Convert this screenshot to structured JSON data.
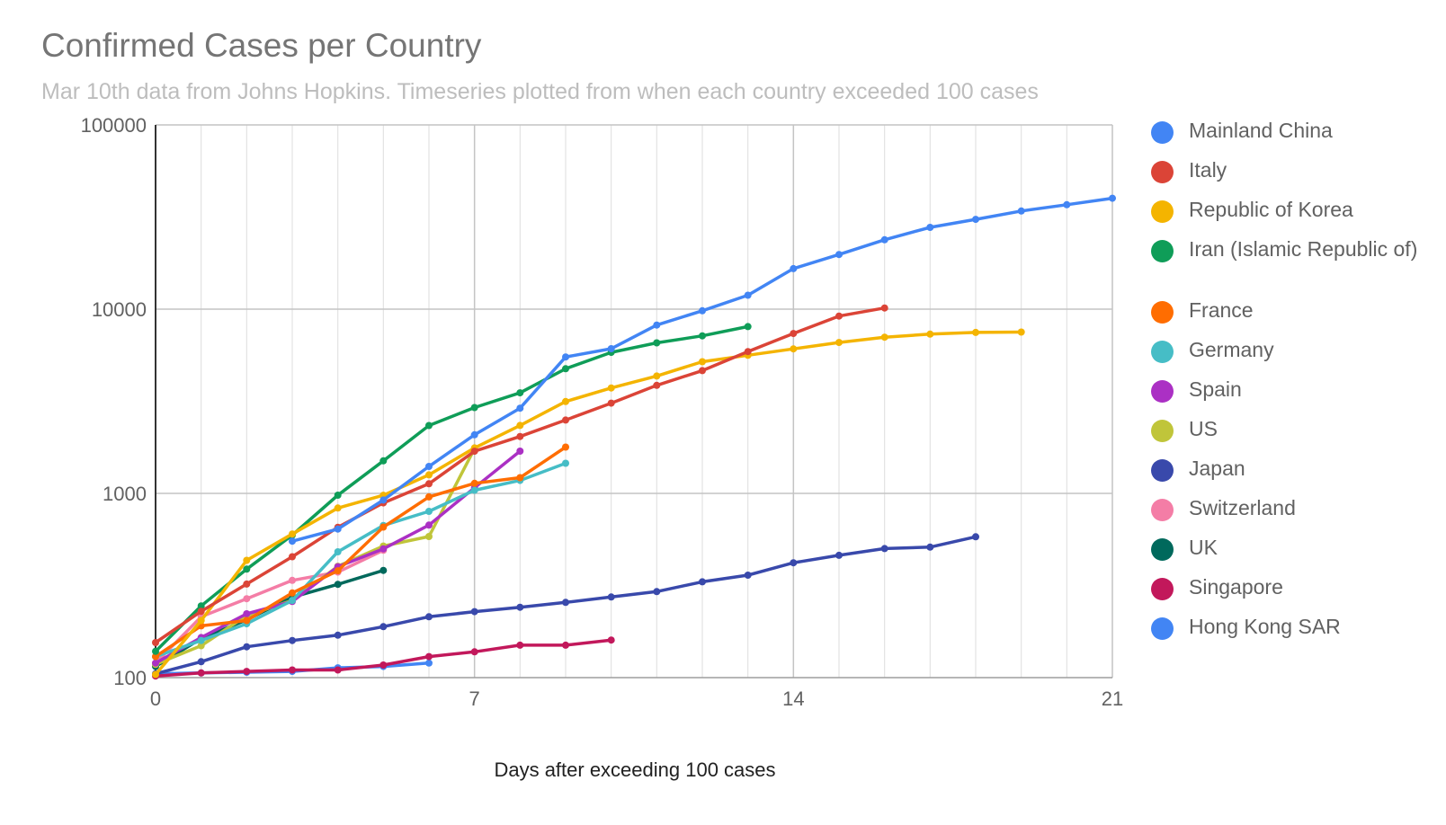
{
  "chart_data": {
    "type": "line",
    "title": "Confirmed Cases per Country",
    "subtitle": "Mar 10th data from Johns Hopkins. Timeseries plotted from when each country exceeded 100 cases",
    "xlabel": "Days after exceeding 100 cases",
    "ylabel": "",
    "yscale": "log",
    "xlim": [
      0,
      21
    ],
    "ylim": [
      100,
      100000
    ],
    "x_ticks": [
      "0",
      "7",
      "14",
      "21"
    ],
    "y_ticks": [
      "100",
      "1000",
      "10000",
      "100000"
    ],
    "grid": true,
    "legend_position": "right",
    "series": [
      {
        "name": "Mainland China",
        "color": "#4285f4",
        "x": [
          3,
          4,
          5,
          6,
          7,
          8,
          9,
          10,
          11,
          12,
          13,
          14,
          15,
          16,
          17,
          18,
          19,
          20,
          21
        ],
        "values": [
          550,
          640,
          920,
          1400,
          2080,
          2900,
          5500,
          6100,
          8200,
          9800,
          11900,
          16600,
          19800,
          23800,
          27800,
          30700,
          34100,
          36900,
          40000
        ]
      },
      {
        "name": "Italy",
        "color": "#db4437",
        "x": [
          0,
          1,
          2,
          3,
          4,
          5,
          6,
          7,
          8,
          9,
          10,
          11,
          12,
          13,
          14,
          15,
          16
        ],
        "values": [
          155,
          229,
          322,
          453,
          655,
          888,
          1128,
          1694,
          2036,
          2502,
          3089,
          3858,
          4636,
          5883,
          7375,
          9172,
          10149
        ]
      },
      {
        "name": "Republic of Korea",
        "color": "#f4b400",
        "x": [
          0,
          1,
          2,
          3,
          4,
          5,
          6,
          7,
          8,
          9,
          10,
          11,
          12,
          13,
          14,
          15,
          16,
          17,
          18,
          19
        ],
        "values": [
          104,
          204,
          433,
          602,
          833,
          977,
          1261,
          1766,
          2337,
          3150,
          3736,
          4335,
          5186,
          5621,
          6088,
          6593,
          7041,
          7314,
          7478,
          7513
        ]
      },
      {
        "name": "Iran (Islamic Republic of)",
        "color": "#0f9d58",
        "x": [
          0,
          1,
          2,
          3,
          4,
          5,
          6,
          7,
          8,
          9,
          10,
          11,
          12,
          13
        ],
        "values": [
          139,
          245,
          388,
          593,
          978,
          1501,
          2336,
          2922,
          3513,
          4747,
          5823,
          6566,
          7161,
          8042
        ]
      },
      {
        "name": "France",
        "color": "#ff6d01",
        "x": [
          0,
          1,
          2,
          3,
          4,
          5,
          6,
          7,
          8,
          9
        ],
        "values": [
          130,
          191,
          204,
          288,
          380,
          656,
          957,
          1134,
          1217,
          1784
        ]
      },
      {
        "name": "Germany",
        "color": "#46bdc6",
        "x": [
          0,
          1,
          2,
          3,
          4,
          5,
          6,
          7,
          8,
          9
        ],
        "values": [
          130,
          159,
          196,
          262,
          482,
          670,
          799,
          1040,
          1176,
          1457
        ]
      },
      {
        "name": "Spain",
        "color": "#ab30c4",
        "x": [
          0,
          1,
          2,
          3,
          4,
          5,
          6,
          7,
          8
        ],
        "values": [
          120,
          165,
          222,
          259,
          400,
          500,
          673,
          1073,
          1695
        ]
      },
      {
        "name": "US",
        "color": "#c0c53a",
        "x": [
          0,
          1,
          2,
          3,
          4,
          5,
          6,
          7
        ],
        "values": [
          118,
          149,
          217,
          262,
          402,
          518,
          583,
          1750
        ]
      },
      {
        "name": "Japan",
        "color": "#3949ab",
        "x": [
          0,
          1,
          2,
          3,
          4,
          5,
          6,
          7,
          8,
          9,
          10,
          11,
          12,
          13,
          14,
          15,
          16,
          17,
          18
        ],
        "values": [
          105,
          122,
          147,
          159,
          170,
          189,
          214,
          228,
          241,
          256,
          274,
          293,
          331,
          360,
          420,
          461,
          502,
          511,
          581
        ]
      },
      {
        "name": "Switzerland",
        "color": "#f47da6",
        "x": [
          0,
          1,
          2,
          3,
          4,
          5
        ],
        "values": [
          120,
          214,
          268,
          337,
          374,
          491
        ]
      },
      {
        "name": "UK",
        "color": "#00695c",
        "x": [
          0,
          1,
          2,
          3,
          4,
          5
        ],
        "values": [
          115,
          163,
          206,
          273,
          321,
          382
        ]
      },
      {
        "name": "Singapore",
        "color": "#c2185b",
        "x": [
          0,
          1,
          2,
          3,
          4,
          5,
          6,
          7,
          8,
          9,
          10
        ],
        "values": [
          102,
          106,
          108,
          110,
          110,
          117,
          130,
          138,
          150,
          150,
          160
        ]
      },
      {
        "name": "Hong Kong SAR",
        "color": "#4285f4",
        "x": [
          0,
          1,
          2,
          3,
          4,
          5,
          6
        ],
        "values": [
          105,
          106,
          107,
          108,
          113,
          115,
          120
        ]
      }
    ]
  }
}
